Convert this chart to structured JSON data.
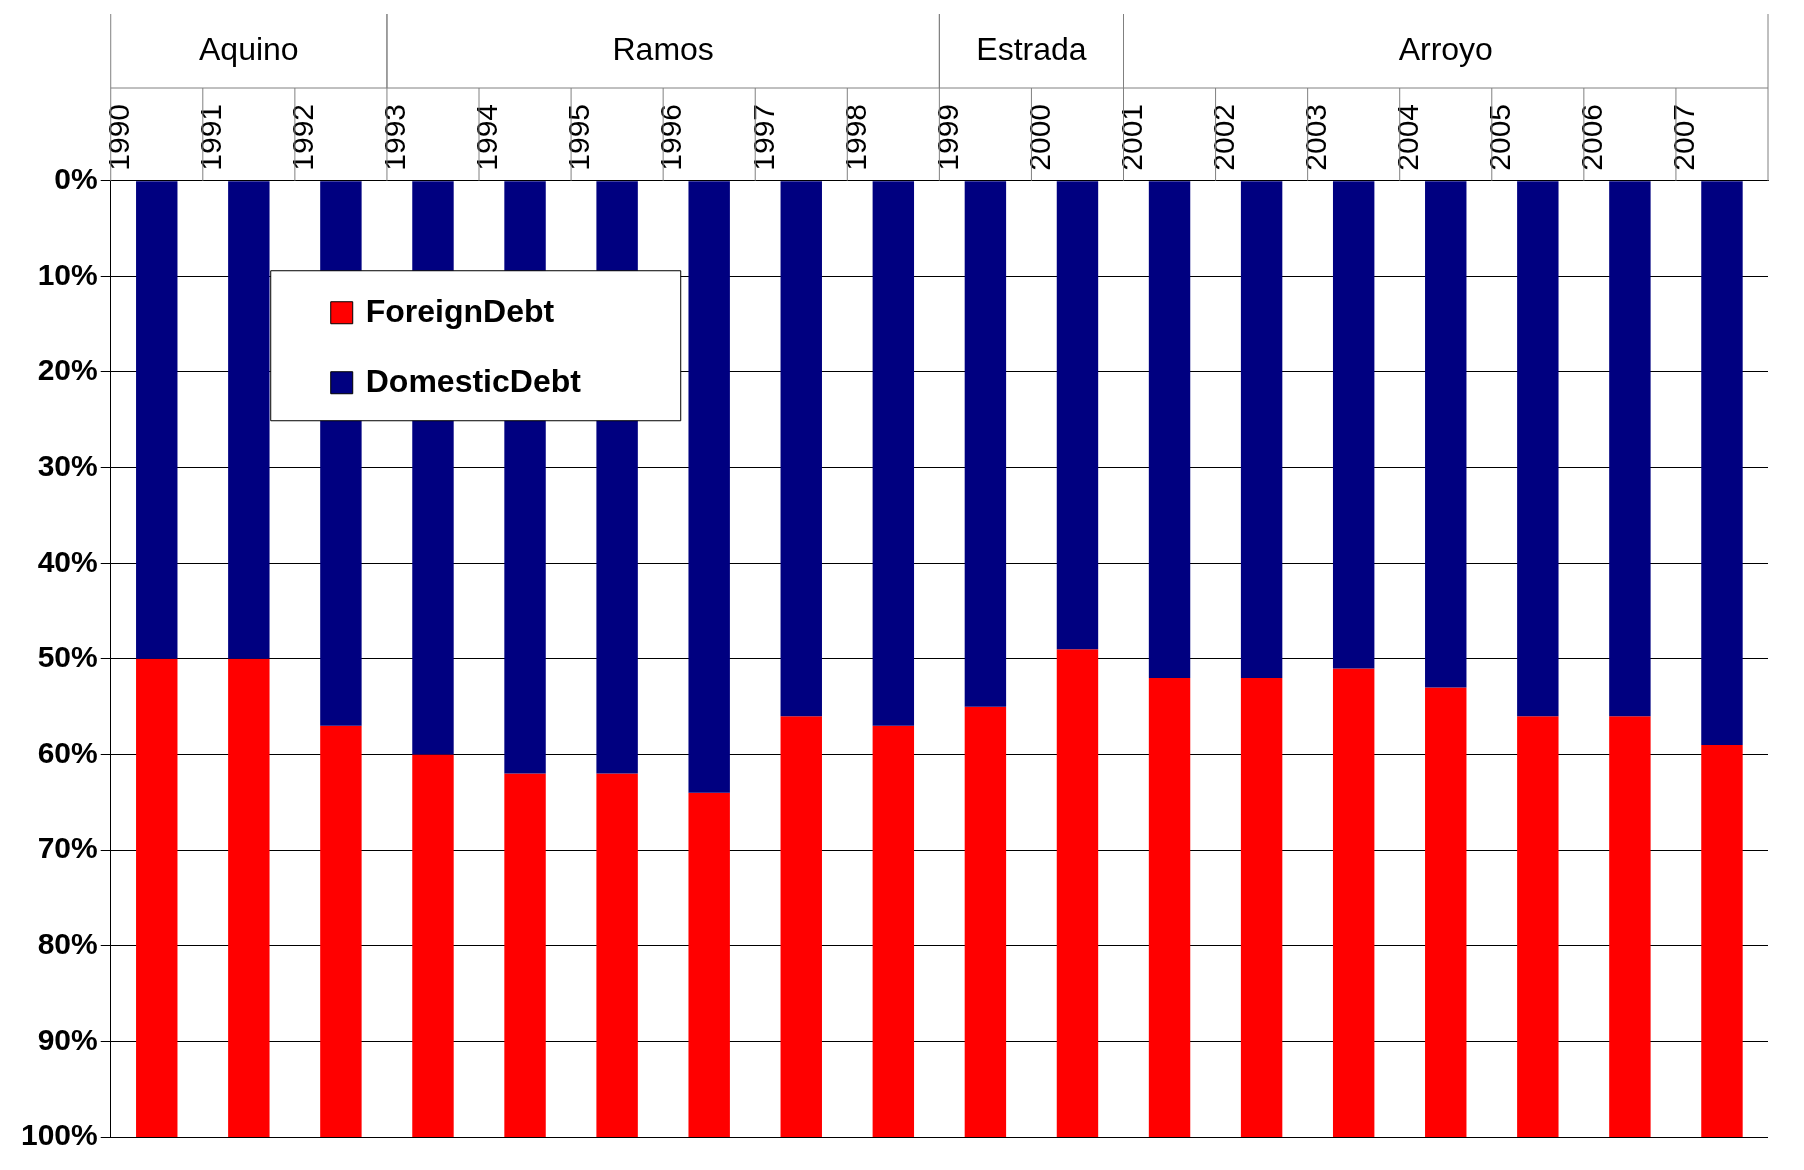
{
  "chart_data": {
    "type": "bar",
    "stacked": true,
    "categories": [
      "1990",
      "1991",
      "1992",
      "1993",
      "1994",
      "1995",
      "1996",
      "1997",
      "1998",
      "1999",
      "2000",
      "2001",
      "2002",
      "2003",
      "2004",
      "2005",
      "2006",
      "2007"
    ],
    "series": [
      {
        "name": "DomesticDebt",
        "color": "#000080",
        "values": [
          50,
          50,
          57,
          60,
          62,
          62,
          64,
          56,
          57,
          55,
          49,
          52,
          52,
          51,
          53,
          56,
          56,
          59
        ]
      },
      {
        "name": "ForeignDebt",
        "color": "#ff0000",
        "values": [
          50,
          50,
          43,
          40,
          38,
          38,
          36,
          44,
          43,
          45,
          51,
          48,
          48,
          49,
          47,
          44,
          44,
          41
        ]
      }
    ],
    "annotations": [
      "Aquino",
      "Ramos",
      "Estrada",
      "Arroyo"
    ],
    "ylim": [
      100,
      0
    ],
    "yticks": [
      {
        "value": 0,
        "label": "0%"
      },
      {
        "value": 10,
        "label": "10%"
      },
      {
        "value": 20,
        "label": "20%"
      },
      {
        "value": 30,
        "label": "30%"
      },
      {
        "value": 40,
        "label": "40%"
      },
      {
        "value": 50,
        "label": "50%"
      },
      {
        "value": 60,
        "label": "60%"
      },
      {
        "value": 70,
        "label": "70%"
      },
      {
        "value": 80,
        "label": "80%"
      },
      {
        "value": 90,
        "label": "90%"
      },
      {
        "value": 100,
        "label": "100%"
      }
    ],
    "grid": "y",
    "legend": "top left"
  }
}
